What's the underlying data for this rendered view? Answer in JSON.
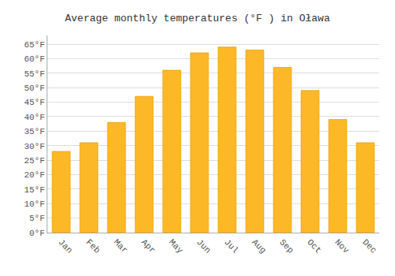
{
  "chart_data": {
    "type": "bar",
    "title": "Average monthly temperatures (°F ) in Oława",
    "categories": [
      "Jan",
      "Feb",
      "Mar",
      "Apr",
      "May",
      "Jun",
      "Jul",
      "Aug",
      "Sep",
      "Oct",
      "Nov",
      "Dec"
    ],
    "values": [
      28,
      31,
      38,
      47,
      56,
      62,
      64,
      63,
      57,
      49,
      39,
      31
    ],
    "color": "#FDB827",
    "ylim": [
      0,
      68
    ],
    "yticks": [
      {
        "value": 0,
        "label": "0°F"
      },
      {
        "value": 5,
        "label": "5°F"
      },
      {
        "value": 10,
        "label": "10°F"
      },
      {
        "value": 15,
        "label": "15°F"
      },
      {
        "value": 20,
        "label": "20°F"
      },
      {
        "value": 25,
        "label": "25°F"
      },
      {
        "value": 30,
        "label": "30°F"
      },
      {
        "value": 35,
        "label": "35°F"
      },
      {
        "value": 40,
        "label": "40°F"
      },
      {
        "value": 45,
        "label": "45°F"
      },
      {
        "value": 50,
        "label": "50°F"
      },
      {
        "value": 55,
        "label": "55°F"
      },
      {
        "value": 60,
        "label": "60°F"
      },
      {
        "value": 65,
        "label": "65°F"
      }
    ],
    "grid": true
  }
}
